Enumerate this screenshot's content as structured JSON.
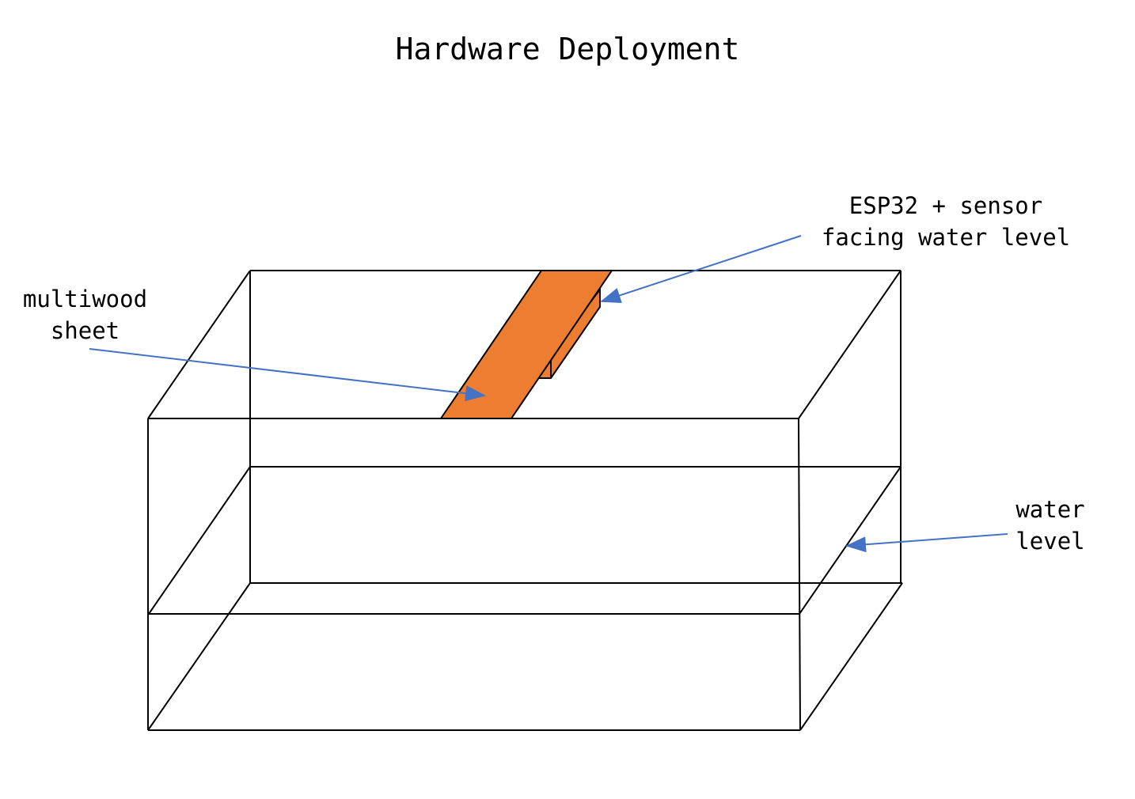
{
  "title": "Hardware Deployment",
  "labels": {
    "esp32_sensor": {
      "line1": "ESP32 + sensor",
      "line2": "facing water level"
    },
    "multiwood_sheet": {
      "line1": "multiwood",
      "line2": "sheet"
    },
    "water_level": {
      "line1": "water",
      "line2": "level"
    }
  },
  "colors": {
    "outline": "#000000",
    "sheet_fill": "#ED7D31",
    "arrow": "#4472C4",
    "background": "#FFFFFF"
  }
}
